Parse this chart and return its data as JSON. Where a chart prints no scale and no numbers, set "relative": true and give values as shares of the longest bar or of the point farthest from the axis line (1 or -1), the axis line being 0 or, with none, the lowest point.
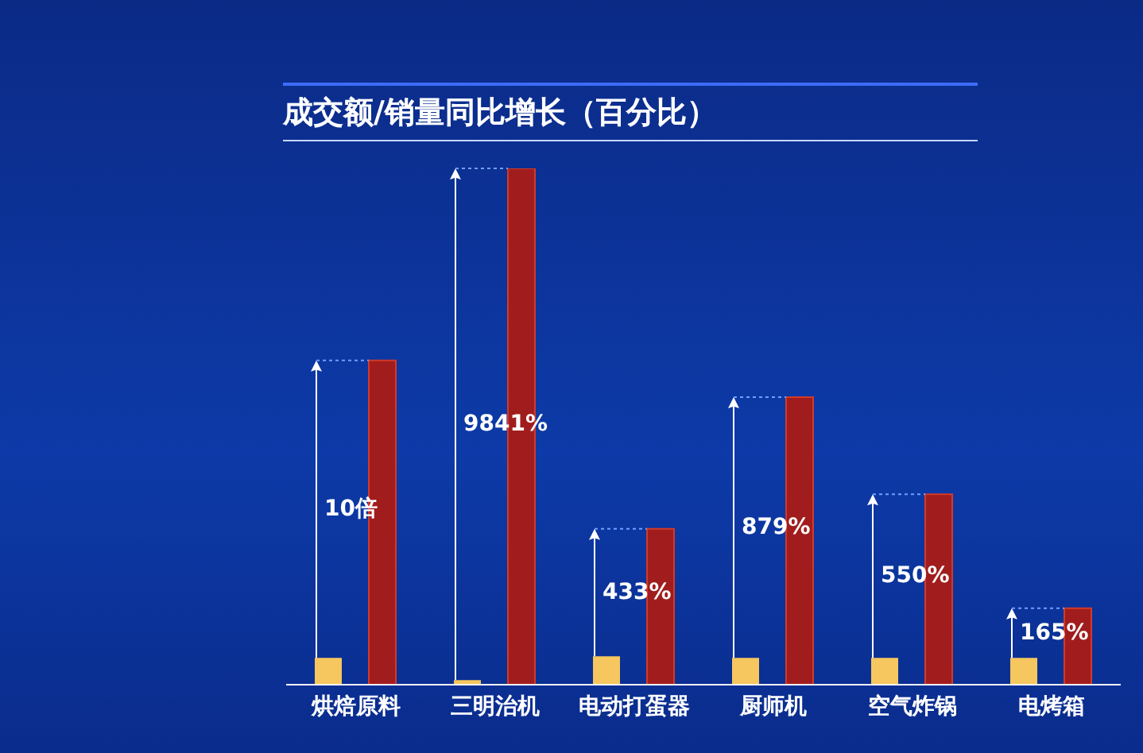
{
  "chart_data": {
    "type": "bar",
    "title": "成交额/销量同比增长（百分比）",
    "relative": true,
    "categories": [
      "烘焙原料",
      "三明治机",
      "电动打蛋器",
      "厨师机",
      "空气炸锅",
      "电烤箱"
    ],
    "series": [
      {
        "color": "#f6c75e",
        "values": [
          0.052,
          0.009,
          0.055,
          0.052,
          0.052,
          0.052
        ]
      },
      {
        "color": "#a11d1d",
        "values": [
          0.628,
          1,
          0.302,
          0.557,
          0.369,
          0.148
        ]
      }
    ],
    "annotations": [
      "10倍",
      "9841%",
      "433%",
      "879%",
      "550%",
      "165%"
    ]
  }
}
